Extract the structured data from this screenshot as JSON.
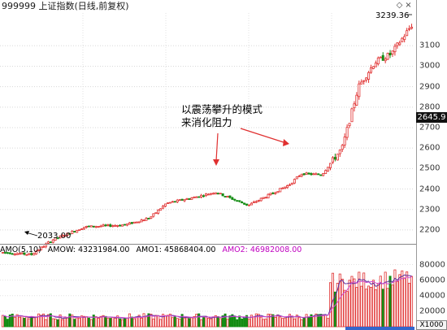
{
  "header": {
    "title": "999999 上证指数(日线,前复权)",
    "icon_up": "◇",
    "icon_close": "×"
  },
  "annotation": {
    "line1": "以震荡攀升的模式",
    "line2": "来消化阻力"
  },
  "price_axis": {
    "ticks": [
      "3100",
      "3000",
      "2900",
      "2800",
      "2700",
      "2600",
      "2500",
      "2400",
      "2300",
      "2200"
    ],
    "current_price": "2645.9"
  },
  "labels": {
    "high": "3239.36",
    "low": "2033.00"
  },
  "volume": {
    "header": {
      "name": "AMO(5,10)",
      "amow": "AMOW: 43231984.00",
      "amo1": "AMO1: 45868404.00",
      "amo2": "AMO2: 46982008.00"
    },
    "ticks": [
      "80000",
      "60000",
      "40000",
      "20000"
    ],
    "zoom": "X1000"
  },
  "colors": {
    "up": "#e03030",
    "down": "#138c13",
    "ma1": "#5a2a9c",
    "ma2": "#d14fd1"
  },
  "chart_data": {
    "type": "candlestick",
    "ylim": [
      2140,
      3260
    ],
    "trend_anchors": [
      [
        0,
        2090
      ],
      [
        0.07,
        2080
      ],
      [
        0.12,
        2150
      ],
      [
        0.2,
        2215
      ],
      [
        0.3,
        2225
      ],
      [
        0.36,
        2260
      ],
      [
        0.4,
        2330
      ],
      [
        0.47,
        2360
      ],
      [
        0.52,
        2385
      ],
      [
        0.6,
        2320
      ],
      [
        0.66,
        2380
      ],
      [
        0.7,
        2420
      ],
      [
        0.73,
        2475
      ],
      [
        0.78,
        2470
      ],
      [
        0.83,
        2600
      ],
      [
        0.87,
        2900
      ],
      [
        0.91,
        3020
      ],
      [
        0.95,
        3060
      ],
      [
        1,
        3200
      ]
    ],
    "volume_ylim": [
      0,
      90000
    ]
  }
}
